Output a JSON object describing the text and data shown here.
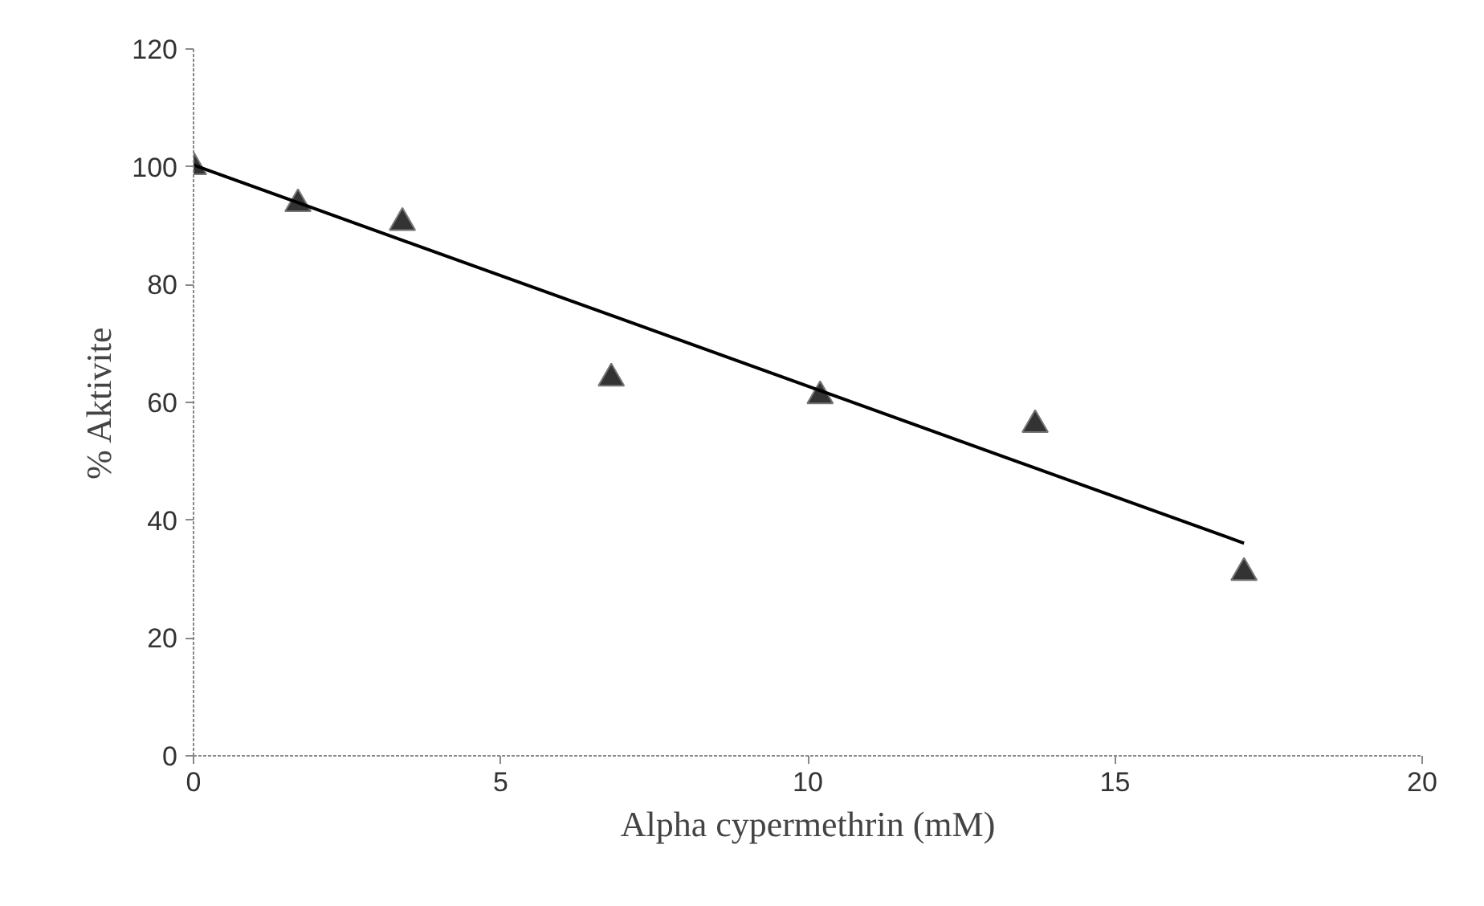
{
  "chart_data": {
    "type": "scatter",
    "xlabel": "Alpha cypermethrin (mM)",
    "ylabel": "% Aktivite",
    "xlim": [
      0,
      20
    ],
    "ylim": [
      0,
      120
    ],
    "xticks": [
      0,
      5,
      10,
      15,
      20
    ],
    "yticks": [
      0,
      20,
      40,
      60,
      80,
      100,
      120
    ],
    "grid": false,
    "marker": "triangle",
    "series": [
      {
        "color": "#333333",
        "x": [
          0,
          1.7,
          3.4,
          6.8,
          10.2,
          13.7,
          17.1
        ],
        "values": [
          100,
          93.7,
          90.5,
          64.1,
          61.1,
          56.2,
          31.1
        ]
      },
      {
        "type": "line",
        "color": "#000000",
        "line_style": "solid",
        "marker": "none",
        "x": [
          0,
          17.1
        ],
        "values": [
          100.3,
          36.1
        ]
      }
    ]
  }
}
